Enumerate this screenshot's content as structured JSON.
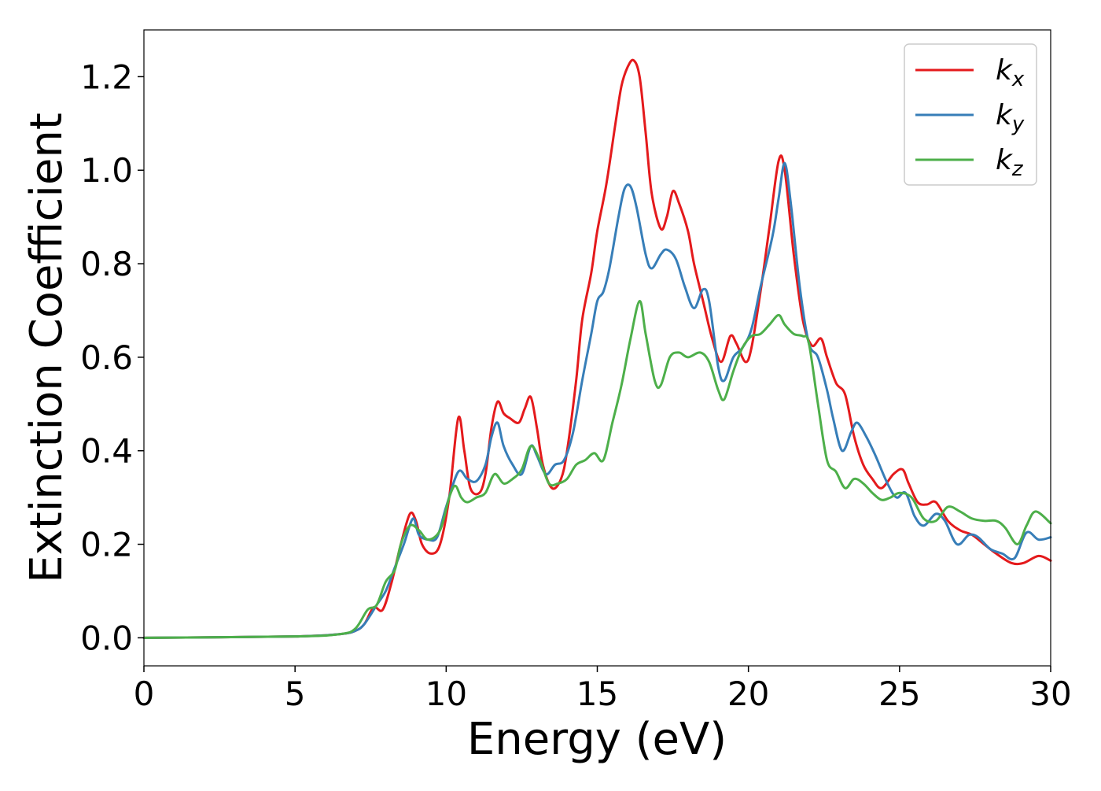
{
  "chart_data": {
    "type": "line",
    "title": "",
    "xlabel": "Energy (eV)",
    "ylabel": "Extinction Coefficient",
    "xlim": [
      0,
      30
    ],
    "ylim": [
      -0.06,
      1.3
    ],
    "x_ticks": [
      0,
      5,
      10,
      15,
      20,
      25,
      30
    ],
    "x_tick_labels": [
      "0",
      "5",
      "10",
      "15",
      "20",
      "25",
      "30"
    ],
    "y_ticks": [
      0.0,
      0.2,
      0.4,
      0.6,
      0.8,
      1.0,
      1.2
    ],
    "y_tick_labels": [
      "0.0",
      "0.2",
      "0.4",
      "0.6",
      "0.8",
      "1.0",
      "1.2"
    ],
    "grid": false,
    "legend_position": "top-right",
    "series": [
      {
        "name": "k",
        "subscript": "x",
        "color": "#e41a1c",
        "points": [
          [
            0,
            0
          ],
          [
            5,
            0.003
          ],
          [
            6.5,
            0.008
          ],
          [
            7.0,
            0.015
          ],
          [
            7.3,
            0.03
          ],
          [
            7.6,
            0.065
          ],
          [
            7.9,
            0.06
          ],
          [
            8.2,
            0.12
          ],
          [
            8.5,
            0.2
          ],
          [
            8.8,
            0.265
          ],
          [
            9.0,
            0.25
          ],
          [
            9.2,
            0.2
          ],
          [
            9.5,
            0.18
          ],
          [
            9.8,
            0.2
          ],
          [
            10.1,
            0.3
          ],
          [
            10.4,
            0.47
          ],
          [
            10.6,
            0.4
          ],
          [
            10.8,
            0.32
          ],
          [
            11.1,
            0.31
          ],
          [
            11.3,
            0.35
          ],
          [
            11.5,
            0.45
          ],
          [
            11.7,
            0.505
          ],
          [
            11.9,
            0.48
          ],
          [
            12.1,
            0.47
          ],
          [
            12.4,
            0.46
          ],
          [
            12.6,
            0.49
          ],
          [
            12.8,
            0.515
          ],
          [
            13.0,
            0.45
          ],
          [
            13.2,
            0.37
          ],
          [
            13.5,
            0.32
          ],
          [
            13.8,
            0.34
          ],
          [
            14.0,
            0.4
          ],
          [
            14.3,
            0.55
          ],
          [
            14.5,
            0.68
          ],
          [
            14.8,
            0.78
          ],
          [
            15.0,
            0.87
          ],
          [
            15.3,
            0.97
          ],
          [
            15.6,
            1.1
          ],
          [
            15.8,
            1.18
          ],
          [
            16.0,
            1.22
          ],
          [
            16.2,
            1.235
          ],
          [
            16.4,
            1.2
          ],
          [
            16.6,
            1.08
          ],
          [
            16.8,
            0.95
          ],
          [
            17.1,
            0.875
          ],
          [
            17.3,
            0.9
          ],
          [
            17.5,
            0.955
          ],
          [
            17.7,
            0.93
          ],
          [
            18.0,
            0.87
          ],
          [
            18.2,
            0.8
          ],
          [
            18.5,
            0.72
          ],
          [
            18.8,
            0.64
          ],
          [
            19.1,
            0.59
          ],
          [
            19.4,
            0.645
          ],
          [
            19.6,
            0.63
          ],
          [
            19.9,
            0.59
          ],
          [
            20.1,
            0.62
          ],
          [
            20.4,
            0.74
          ],
          [
            20.7,
            0.88
          ],
          [
            21.0,
            1.02
          ],
          [
            21.2,
            1.0
          ],
          [
            21.5,
            0.82
          ],
          [
            21.8,
            0.68
          ],
          [
            22.1,
            0.625
          ],
          [
            22.4,
            0.64
          ],
          [
            22.6,
            0.6
          ],
          [
            22.9,
            0.545
          ],
          [
            23.2,
            0.52
          ],
          [
            23.5,
            0.43
          ],
          [
            23.8,
            0.37
          ],
          [
            24.1,
            0.34
          ],
          [
            24.4,
            0.32
          ],
          [
            24.8,
            0.35
          ],
          [
            25.1,
            0.36
          ],
          [
            25.3,
            0.33
          ],
          [
            25.6,
            0.29
          ],
          [
            25.9,
            0.285
          ],
          [
            26.2,
            0.29
          ],
          [
            26.6,
            0.25
          ],
          [
            27.0,
            0.23
          ],
          [
            27.4,
            0.22
          ],
          [
            27.8,
            0.2
          ],
          [
            28.2,
            0.18
          ],
          [
            28.7,
            0.16
          ],
          [
            29.1,
            0.16
          ],
          [
            29.6,
            0.175
          ],
          [
            30,
            0.165
          ]
        ]
      },
      {
        "name": "k",
        "subscript": "y",
        "color": "#377eb8",
        "points": [
          [
            0,
            0
          ],
          [
            5,
            0.003
          ],
          [
            6.5,
            0.008
          ],
          [
            7.0,
            0.015
          ],
          [
            7.3,
            0.03
          ],
          [
            7.7,
            0.07
          ],
          [
            8.0,
            0.1
          ],
          [
            8.3,
            0.15
          ],
          [
            8.6,
            0.2
          ],
          [
            8.9,
            0.255
          ],
          [
            9.1,
            0.22
          ],
          [
            9.4,
            0.21
          ],
          [
            9.7,
            0.215
          ],
          [
            10.0,
            0.28
          ],
          [
            10.4,
            0.355
          ],
          [
            10.7,
            0.34
          ],
          [
            11.0,
            0.335
          ],
          [
            11.3,
            0.37
          ],
          [
            11.5,
            0.43
          ],
          [
            11.7,
            0.46
          ],
          [
            11.9,
            0.41
          ],
          [
            12.2,
            0.37
          ],
          [
            12.5,
            0.35
          ],
          [
            12.8,
            0.41
          ],
          [
            13.0,
            0.39
          ],
          [
            13.3,
            0.35
          ],
          [
            13.6,
            0.37
          ],
          [
            13.9,
            0.38
          ],
          [
            14.2,
            0.44
          ],
          [
            14.5,
            0.55
          ],
          [
            14.8,
            0.65
          ],
          [
            15.0,
            0.72
          ],
          [
            15.2,
            0.74
          ],
          [
            15.4,
            0.79
          ],
          [
            15.7,
            0.9
          ],
          [
            15.9,
            0.96
          ],
          [
            16.1,
            0.965
          ],
          [
            16.3,
            0.92
          ],
          [
            16.6,
            0.82
          ],
          [
            16.8,
            0.79
          ],
          [
            17.1,
            0.82
          ],
          [
            17.3,
            0.83
          ],
          [
            17.6,
            0.81
          ],
          [
            17.9,
            0.75
          ],
          [
            18.2,
            0.705
          ],
          [
            18.5,
            0.745
          ],
          [
            18.7,
            0.72
          ],
          [
            19.0,
            0.58
          ],
          [
            19.2,
            0.55
          ],
          [
            19.5,
            0.6
          ],
          [
            19.8,
            0.62
          ],
          [
            20.1,
            0.66
          ],
          [
            20.4,
            0.75
          ],
          [
            20.8,
            0.86
          ],
          [
            21.0,
            0.94
          ],
          [
            21.2,
            1.015
          ],
          [
            21.4,
            0.93
          ],
          [
            21.7,
            0.75
          ],
          [
            22.0,
            0.63
          ],
          [
            22.3,
            0.6
          ],
          [
            22.6,
            0.53
          ],
          [
            22.8,
            0.47
          ],
          [
            23.1,
            0.4
          ],
          [
            23.4,
            0.44
          ],
          [
            23.6,
            0.46
          ],
          [
            23.9,
            0.43
          ],
          [
            24.2,
            0.39
          ],
          [
            24.6,
            0.33
          ],
          [
            24.9,
            0.3
          ],
          [
            25.2,
            0.31
          ],
          [
            25.5,
            0.26
          ],
          [
            25.8,
            0.24
          ],
          [
            26.2,
            0.265
          ],
          [
            26.5,
            0.25
          ],
          [
            26.9,
            0.2
          ],
          [
            27.3,
            0.22
          ],
          [
            27.6,
            0.215
          ],
          [
            28.0,
            0.19
          ],
          [
            28.4,
            0.18
          ],
          [
            28.8,
            0.17
          ],
          [
            29.2,
            0.225
          ],
          [
            29.6,
            0.21
          ],
          [
            30,
            0.215
          ]
        ]
      },
      {
        "name": "k",
        "subscript": "z",
        "color": "#4daf4a",
        "points": [
          [
            0,
            0
          ],
          [
            5,
            0.003
          ],
          [
            6.5,
            0.008
          ],
          [
            7.0,
            0.02
          ],
          [
            7.4,
            0.06
          ],
          [
            7.7,
            0.07
          ],
          [
            8.0,
            0.12
          ],
          [
            8.3,
            0.145
          ],
          [
            8.5,
            0.2
          ],
          [
            8.8,
            0.24
          ],
          [
            9.1,
            0.23
          ],
          [
            9.4,
            0.21
          ],
          [
            9.8,
            0.23
          ],
          [
            10.1,
            0.3
          ],
          [
            10.3,
            0.325
          ],
          [
            10.5,
            0.3
          ],
          [
            10.7,
            0.29
          ],
          [
            11.0,
            0.3
          ],
          [
            11.3,
            0.31
          ],
          [
            11.6,
            0.35
          ],
          [
            11.9,
            0.33
          ],
          [
            12.2,
            0.34
          ],
          [
            12.5,
            0.36
          ],
          [
            12.8,
            0.41
          ],
          [
            13.1,
            0.38
          ],
          [
            13.4,
            0.33
          ],
          [
            13.7,
            0.33
          ],
          [
            14.0,
            0.34
          ],
          [
            14.3,
            0.37
          ],
          [
            14.6,
            0.38
          ],
          [
            14.9,
            0.395
          ],
          [
            15.2,
            0.38
          ],
          [
            15.5,
            0.46
          ],
          [
            15.8,
            0.54
          ],
          [
            16.1,
            0.64
          ],
          [
            16.4,
            0.72
          ],
          [
            16.6,
            0.65
          ],
          [
            16.9,
            0.55
          ],
          [
            17.1,
            0.54
          ],
          [
            17.4,
            0.6
          ],
          [
            17.7,
            0.61
          ],
          [
            18.0,
            0.6
          ],
          [
            18.4,
            0.61
          ],
          [
            18.7,
            0.59
          ],
          [
            19.0,
            0.53
          ],
          [
            19.2,
            0.51
          ],
          [
            19.5,
            0.57
          ],
          [
            19.8,
            0.62
          ],
          [
            20.1,
            0.645
          ],
          [
            20.4,
            0.65
          ],
          [
            20.7,
            0.67
          ],
          [
            21.0,
            0.69
          ],
          [
            21.2,
            0.67
          ],
          [
            21.5,
            0.65
          ],
          [
            21.8,
            0.645
          ],
          [
            22.0,
            0.63
          ],
          [
            22.3,
            0.5
          ],
          [
            22.6,
            0.38
          ],
          [
            22.9,
            0.355
          ],
          [
            23.2,
            0.32
          ],
          [
            23.5,
            0.34
          ],
          [
            23.8,
            0.33
          ],
          [
            24.1,
            0.31
          ],
          [
            24.4,
            0.295
          ],
          [
            24.7,
            0.3
          ],
          [
            25.0,
            0.31
          ],
          [
            25.4,
            0.3
          ],
          [
            25.8,
            0.255
          ],
          [
            26.2,
            0.25
          ],
          [
            26.6,
            0.28
          ],
          [
            27.0,
            0.27
          ],
          [
            27.4,
            0.255
          ],
          [
            27.8,
            0.25
          ],
          [
            28.2,
            0.25
          ],
          [
            28.5,
            0.235
          ],
          [
            28.9,
            0.2
          ],
          [
            29.2,
            0.24
          ],
          [
            29.5,
            0.27
          ],
          [
            30,
            0.245
          ]
        ]
      }
    ]
  }
}
